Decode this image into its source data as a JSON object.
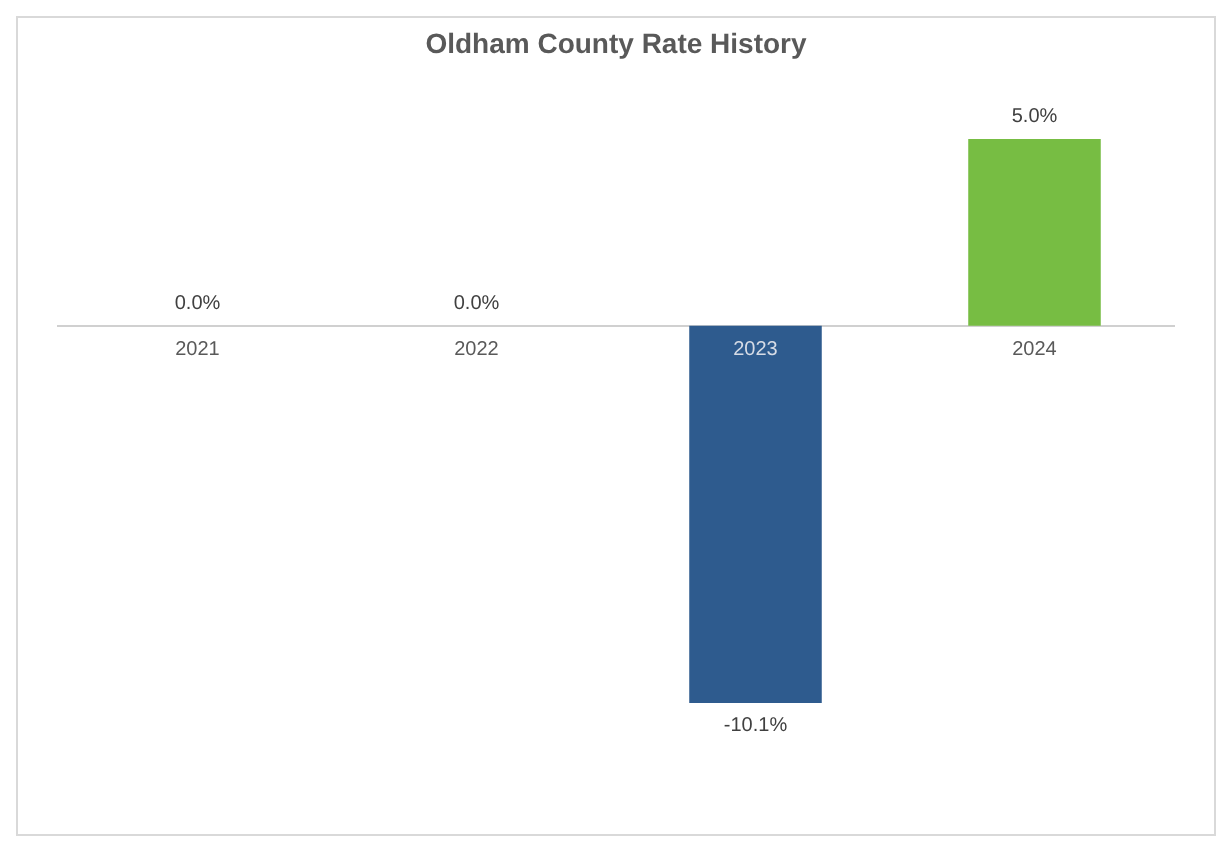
{
  "chart_data": {
    "type": "bar",
    "title": "Oldham County Rate History",
    "categories": [
      "2021",
      "2022",
      "2023",
      "2024"
    ],
    "values": [
      0.0,
      0.0,
      -10.1,
      5.0
    ],
    "colors": [
      "#2e5b8e",
      "#2e5b8e",
      "#2e5b8e",
      "#77bd43"
    ],
    "value_labels": [
      "0.0%",
      "0.0%",
      "-10.1%",
      "5.0%"
    ],
    "grid": false,
    "legend": false
  }
}
